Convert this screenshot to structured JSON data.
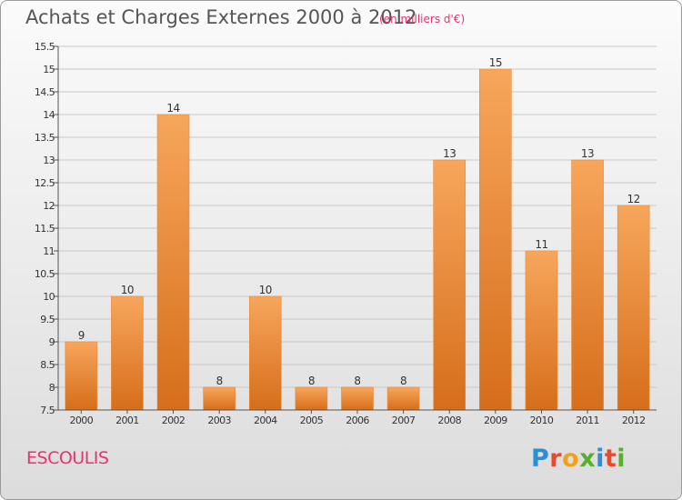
{
  "title": "Achats et Charges Externes 2000 à 2012",
  "subtitle": "(en milliers d'€)",
  "commune": "ESCOULIS",
  "logo": {
    "letters": [
      "P",
      "r",
      "o",
      "x",
      "i",
      "t",
      "i"
    ],
    "colors": [
      "#2a8fd6",
      "#e94a2c",
      "#f0a21a",
      "#5aae2e",
      "#2a8fd6",
      "#e94a2c",
      "#5aae2e"
    ]
  },
  "colors": {
    "bar_top": "#f7a65c",
    "bar_bottom": "#d66e1a",
    "grid": "#c8c8c8",
    "axis": "#555555"
  },
  "chart_data": {
    "type": "bar",
    "title": "Achats et Charges Externes 2000 à 2012",
    "subtitle": "(en milliers d'€)",
    "categories": [
      "2000",
      "2001",
      "2002",
      "2003",
      "2004",
      "2005",
      "2006",
      "2007",
      "2008",
      "2009",
      "2010",
      "2011",
      "2012"
    ],
    "values": [
      9,
      10,
      14,
      8,
      10,
      8,
      8,
      8,
      13,
      15,
      11,
      13,
      12
    ],
    "value_labels": [
      "9",
      "10",
      "14",
      "8",
      "10",
      "8",
      "8",
      "8",
      "13",
      "15",
      "11",
      "13",
      "12"
    ],
    "ylim": [
      7.5,
      15.5
    ],
    "yticks": [
      7.5,
      8,
      8.5,
      9,
      9.5,
      10,
      10.5,
      11,
      11.5,
      12,
      12.5,
      13,
      13.5,
      14,
      14.5,
      15,
      15.5
    ],
    "ytick_labels": [
      "7.5",
      "8",
      "8.5",
      "9",
      "9.5",
      "10",
      "10.5",
      "11",
      "11.5",
      "12",
      "12.5",
      "13",
      "13.5",
      "14",
      "14.5",
      "15",
      "15.5"
    ],
    "grid": true,
    "legend": "none"
  }
}
